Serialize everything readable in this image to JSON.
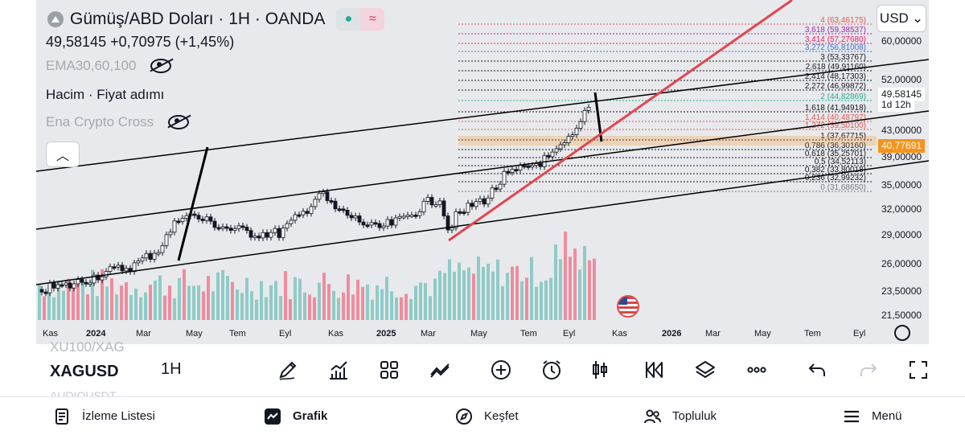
{
  "header": {
    "title": "Gümüş/ABD Doları · 1H · OANDA",
    "price_line": "49,58145  +0,70975 (+1,45%)",
    "live_up_icon": "●",
    "live_wave_icon": "≈"
  },
  "indicators": [
    {
      "label": "EMA30,60,100",
      "style": "muted"
    },
    {
      "label": "Hacim · Fiyat adımı",
      "style": "dark"
    },
    {
      "label": "Ena Crypto Cross",
      "style": "muted"
    }
  ],
  "currency": {
    "label": "USD",
    "chevron": "⌄"
  },
  "collapse_icon": "︿",
  "price_axis": [
    "60,00000",
    "52,00000",
    "43,00000",
    "39,00000",
    "35,00000",
    "32,00000",
    "29,00000",
    "26,00000",
    "23,50000",
    "21,50000"
  ],
  "price_tags": {
    "current_price": "49,58145",
    "countdown": "1d 12h",
    "marked_price": "40,77691"
  },
  "time_axis": [
    "Kas",
    "2024",
    "Mar",
    "May",
    "Tem",
    "Eyl",
    "Kas",
    "2025",
    "Mar",
    "May",
    "Tem",
    "Eyl",
    "Kas",
    "2026",
    "Mar",
    "May",
    "Tem",
    "Eyl"
  ],
  "fib_levels": [
    {
      "label": "4 (63,46175)",
      "color": "#e0584f"
    },
    {
      "label": "3,618 (59,38537)",
      "color": "#9c27b0"
    },
    {
      "label": "3,414 (57,27680)",
      "color": "#e91e63"
    },
    {
      "label": "3,272 (56,81008)",
      "color": "#3f6fd1"
    },
    {
      "label": "3 (53,33767)",
      "color": "#131722"
    },
    {
      "label": "2,618 (49,91160)",
      "color": "#131722"
    },
    {
      "label": "2,414 (48,17303)",
      "color": "#131722"
    },
    {
      "label": "2,272 (46,99872)",
      "color": "#131722"
    },
    {
      "label": "2 (44,82869)",
      "color": "#22ab94"
    },
    {
      "label": "1,618 (41,94918)",
      "color": "#131722"
    },
    {
      "label": "1,414 (40,48797)",
      "color": "#e0584f"
    },
    {
      "label": "1,272 (39,50100)",
      "color": "#e0584f"
    },
    {
      "label": "1 (37,67715)",
      "color": "#131722"
    },
    {
      "label": "0,786 (36,30160)",
      "color": "#131722"
    },
    {
      "label": "0,618 (35,25701)",
      "color": "#131722"
    },
    {
      "label": "0,5 (34,52113)",
      "color": "#131722"
    },
    {
      "label": "0,382 (33,80018)",
      "color": "#131722"
    },
    {
      "label": "0,236 (32,99232)",
      "color": "#131722"
    },
    {
      "label": "0 (31,68650)",
      "color": "#787b86"
    }
  ],
  "toolbar": {
    "symbol_prev": "XU100/XAG",
    "symbol": "XAGUSD",
    "symbol_next": "AUDIOUSDT",
    "interval": "1H"
  },
  "nav": {
    "watchlist": "İzleme Listesi",
    "chart": "Grafik",
    "explore": "Keşfet",
    "community": "Topluluk",
    "menu": "Menü"
  },
  "colors": {
    "up": "#131722",
    "volume": "#7fc6bf",
    "volume_dn": "#f07b8f",
    "trend_red": "#e0464f"
  }
}
